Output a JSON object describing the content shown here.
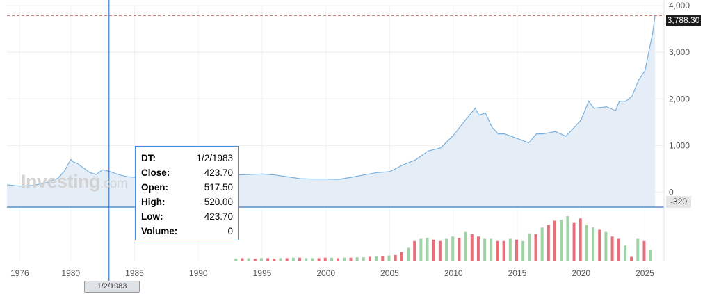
{
  "brand": {
    "name": "Investing",
    "domain": ".com"
  },
  "price_label": "3,788.30",
  "cursor_value_label": "-320",
  "cursor_date_label": "1/2/1983",
  "tooltip": {
    "rows": [
      {
        "label": "DT:",
        "value": "1/2/1983"
      },
      {
        "label": "Close:",
        "value": "423.70"
      },
      {
        "label": "Open:",
        "value": "517.50"
      },
      {
        "label": "High:",
        "value": "520.00"
      },
      {
        "label": "Low:",
        "value": "423.70"
      },
      {
        "label": "Volume:",
        "value": "0"
      }
    ]
  },
  "colors": {
    "line": "#7ab0dd",
    "area": "#e5eef7",
    "crosshair": "#3b7bbf",
    "price_line": "#c0504d",
    "vol_up": "#9fd3a6",
    "vol_down": "#e86f7a"
  },
  "chart_data": {
    "type": "area",
    "x_ticks": [
      1976,
      1980,
      1985,
      1990,
      1995,
      2000,
      2005,
      2010,
      2015,
      2020,
      2025
    ],
    "x_tick_labels": [
      "1976",
      "1980",
      "1985",
      "1990",
      "1995",
      "2000",
      "2005",
      "2010",
      "2015",
      "2020",
      "2025"
    ],
    "y_ticks": [
      0,
      1000,
      2000,
      3000,
      4000
    ],
    "y_tick_labels": [
      "0",
      "1,000",
      "2,000",
      "3,000",
      "4,000"
    ],
    "xlim": [
      1975.0,
      2026.5
    ],
    "ylim": [
      -320,
      4000
    ],
    "last_price": 3788.3,
    "cursor_x": 1983.0,
    "series": [
      {
        "x": [
          1975.0,
          1976.0,
          1977.0,
          1978.0,
          1979.0,
          1979.5,
          1980.0,
          1980.2,
          1980.5,
          1981.0,
          1981.5,
          1982.0,
          1982.5,
          1983.0,
          1983.5,
          1984.0,
          1984.5,
          1985.0,
          1986.0,
          1987.0,
          1988.0,
          1989.0,
          1990.0,
          1991.0,
          1992.0,
          1993.0,
          1994.0,
          1995.0,
          1996.0,
          1997.0,
          1998.0,
          1999.0,
          2000.0,
          2001.0,
          2002.0,
          2003.0,
          2004.0,
          2005.0,
          2006.0,
          2007.0,
          2008.0,
          2009.0,
          2010.0,
          2011.0,
          2011.7,
          2012.0,
          2012.5,
          2013.0,
          2013.5,
          2014.0,
          2015.0,
          2015.9,
          2016.5,
          2017.0,
          2018.0,
          2018.8,
          2019.5,
          2020.0,
          2020.6,
          2021.0,
          2022.0,
          2022.7,
          2023.0,
          2023.5,
          2024.0,
          2024.5,
          2025.0,
          2025.3,
          2025.6,
          2025.8
        ],
        "y": [
          160,
          130,
          145,
          195,
          300,
          450,
          700,
          650,
          620,
          520,
          420,
          380,
          480,
          450,
          400,
          360,
          330,
          320,
          350,
          450,
          430,
          380,
          390,
          370,
          340,
          370,
          380,
          390,
          370,
          330,
          290,
          280,
          280,
          275,
          320,
          370,
          420,
          440,
          580,
          690,
          880,
          950,
          1220,
          1570,
          1800,
          1650,
          1700,
          1400,
          1250,
          1250,
          1150,
          1060,
          1250,
          1250,
          1300,
          1200,
          1400,
          1550,
          1950,
          1800,
          1830,
          1750,
          1950,
          1950,
          2060,
          2400,
          2600,
          3000,
          3400,
          3788
        ]
      }
    ],
    "volume": {
      "x": [
        1993.0,
        1993.5,
        1994.0,
        1994.5,
        1995.0,
        1995.5,
        1996.0,
        1996.5,
        1997.0,
        1997.5,
        1998.0,
        1998.5,
        1999.0,
        1999.5,
        2000.0,
        2000.5,
        2001.0,
        2001.5,
        2002.0,
        2002.5,
        2003.0,
        2003.5,
        2004.0,
        2004.5,
        2005.0,
        2005.5,
        2006.0,
        2006.5,
        2007.0,
        2007.5,
        2008.0,
        2008.5,
        2009.0,
        2009.5,
        2010.0,
        2010.5,
        2011.0,
        2011.5,
        2012.0,
        2012.5,
        2013.0,
        2013.5,
        2014.0,
        2014.5,
        2015.0,
        2015.5,
        2016.0,
        2016.5,
        2017.0,
        2017.5,
        2018.0,
        2018.5,
        2019.0,
        2019.5,
        2020.0,
        2020.5,
        2021.0,
        2021.5,
        2022.0,
        2022.5,
        2023.0,
        2023.5,
        2024.0,
        2024.5,
        2025.0,
        2025.5
      ],
      "v": [
        0.06,
        0.07,
        0.07,
        0.06,
        0.07,
        0.07,
        0.06,
        0.07,
        0.07,
        0.08,
        0.08,
        0.07,
        0.07,
        0.07,
        0.08,
        0.08,
        0.07,
        0.08,
        0.08,
        0.09,
        0.09,
        0.1,
        0.11,
        0.12,
        0.13,
        0.14,
        0.2,
        0.3,
        0.45,
        0.5,
        0.52,
        0.48,
        0.45,
        0.5,
        0.55,
        0.52,
        0.65,
        0.6,
        0.55,
        0.5,
        0.5,
        0.45,
        0.45,
        0.5,
        0.48,
        0.45,
        0.62,
        0.6,
        0.75,
        0.8,
        0.9,
        0.92,
        1.0,
        0.85,
        0.95,
        0.8,
        0.75,
        0.7,
        0.65,
        0.55,
        0.5,
        0.35,
        0.1,
        0.5,
        0.45,
        0.25
      ],
      "up": [
        true,
        false,
        true,
        false,
        true,
        false,
        false,
        true,
        false,
        true,
        false,
        true,
        true,
        false,
        false,
        true,
        false,
        true,
        false,
        true,
        true,
        false,
        true,
        false,
        true,
        false,
        false,
        true,
        false,
        true,
        true,
        false,
        false,
        true,
        true,
        false,
        true,
        false,
        false,
        true,
        true,
        false,
        false,
        true,
        false,
        true,
        true,
        false,
        true,
        false,
        false,
        true,
        true,
        false,
        false,
        true,
        true,
        false,
        true,
        false,
        false,
        true,
        false,
        true,
        false,
        true
      ]
    }
  }
}
